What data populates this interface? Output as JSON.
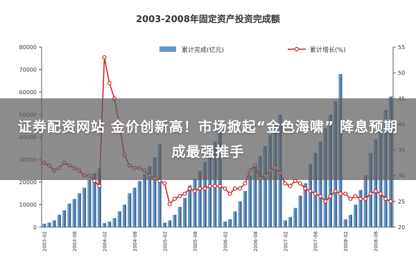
{
  "chart_data": {
    "type": "bar+line",
    "title": "2003-2008年固定资产投资完成额",
    "xlabel": "",
    "ylabel": "",
    "y_left_lim": [
      0,
      80000
    ],
    "y_right_lim": [
      20,
      55
    ],
    "y_left_ticks": [
      "0",
      "10000",
      "20000",
      "30000",
      "40000",
      "50000",
      "60000",
      "70000",
      "80000"
    ],
    "y_right_ticks": [
      "20",
      "25",
      "30",
      "35",
      "40",
      "45",
      "50",
      "55"
    ],
    "grid": false,
    "legend_position": "top",
    "categories": [
      "03-01",
      "03-02",
      "03-03",
      "03-04",
      "03-05",
      "03-06",
      "03-07",
      "03-08",
      "03-09",
      "03-10",
      "03-11",
      "03-12",
      "04-01",
      "04-02",
      "04-03",
      "04-04",
      "04-05",
      "04-06",
      "04-07",
      "04-08",
      "04-09",
      "04-10",
      "04-11",
      "04-12",
      "05-01",
      "05-02",
      "05-03",
      "05-04",
      "05-05",
      "05-06",
      "05-07",
      "05-08",
      "05-09",
      "05-10",
      "05-11",
      "05-12",
      "06-01",
      "06-02",
      "06-03",
      "06-04",
      "06-05",
      "06-06",
      "06-07",
      "06-08",
      "06-09",
      "06-10",
      "06-11",
      "06-12",
      "07-01",
      "07-02",
      "07-03",
      "07-04",
      "07-05",
      "07-06",
      "07-07",
      "07-08",
      "07-09",
      "07-10",
      "07-11",
      "07-12",
      "08-01",
      "08-02",
      "08-03",
      "08-04",
      "08-05",
      "08-06",
      "08-07",
      "08-08",
      "08-09",
      "08-10"
    ],
    "x_tick_labels": [
      {
        "index": 0,
        "label": "2003-02"
      },
      {
        "index": 6,
        "label": "2003-08"
      },
      {
        "index": 12,
        "label": "2004-02"
      },
      {
        "index": 18,
        "label": "2004-08"
      },
      {
        "index": 24,
        "label": "2005-02"
      },
      {
        "index": 30,
        "label": "2005-08"
      },
      {
        "index": 36,
        "label": "2006-02"
      },
      {
        "index": 42,
        "label": "2006-08"
      },
      {
        "index": 48,
        "label": "2007-02"
      },
      {
        "index": 54,
        "label": "2007-08"
      },
      {
        "index": 60,
        "label": "2008-02"
      },
      {
        "index": 66,
        "label": "2008-08"
      }
    ],
    "series": [
      {
        "name": "累计完成(亿元)",
        "type": "bar",
        "axis": "left",
        "color": "#6699cc",
        "values": [
          1500,
          2000,
          3000,
          5500,
          7500,
          10500,
          12500,
          15000,
          17500,
          21000,
          24000,
          26000,
          1800,
          2500,
          4000,
          7000,
          10000,
          15000,
          17500,
          20500,
          23500,
          27000,
          31000,
          37000,
          2000,
          3000,
          5500,
          9000,
          13000,
          18500,
          21500,
          25000,
          29000,
          33500,
          38000,
          42000,
          2500,
          3500,
          7000,
          11500,
          16000,
          23000,
          27000,
          31500,
          36000,
          41000,
          46000,
          50000,
          3000,
          4500,
          8500,
          14000,
          19500,
          28000,
          33000,
          38000,
          44000,
          50000,
          56000,
          68000,
          3500,
          5500,
          10000,
          16500,
          23000,
          33000,
          39000,
          45000,
          52000,
          58000
        ]
      },
      {
        "name": "累计增长(%)",
        "type": "line",
        "axis": "right",
        "color": "#cc2222",
        "values": [
          32.5,
          32,
          31,
          31.5,
          32.5,
          32,
          31.5,
          31,
          30,
          30,
          29,
          28,
          53,
          48,
          45,
          40,
          34,
          32,
          31.5,
          31.5,
          31,
          30,
          29.5,
          29,
          28.5,
          24.5,
          25.5,
          26,
          26.5,
          27.5,
          27,
          27.5,
          27.5,
          28,
          28,
          28,
          27.5,
          26.5,
          27.5,
          27.5,
          28.5,
          31,
          32,
          29.5,
          30,
          31,
          31.5,
          30.5,
          28.5,
          28,
          29,
          28.5,
          27.5,
          27,
          26.5,
          26,
          25,
          26,
          27,
          26.5,
          26.5,
          25.5,
          26,
          25.5,
          25.5,
          26.5,
          27,
          26.5,
          25.5,
          25
        ]
      }
    ]
  },
  "legend": [
    {
      "label": "累计完成(亿元)",
      "color": "#6699cc",
      "kind": "bar"
    },
    {
      "label": "累计增长(%)",
      "color": "#cc2222",
      "kind": "line"
    }
  ],
  "banner": {
    "text": "证券配资网站   金价创新高！市场掀起“金色海啸” 降息预期成最强推手"
  }
}
